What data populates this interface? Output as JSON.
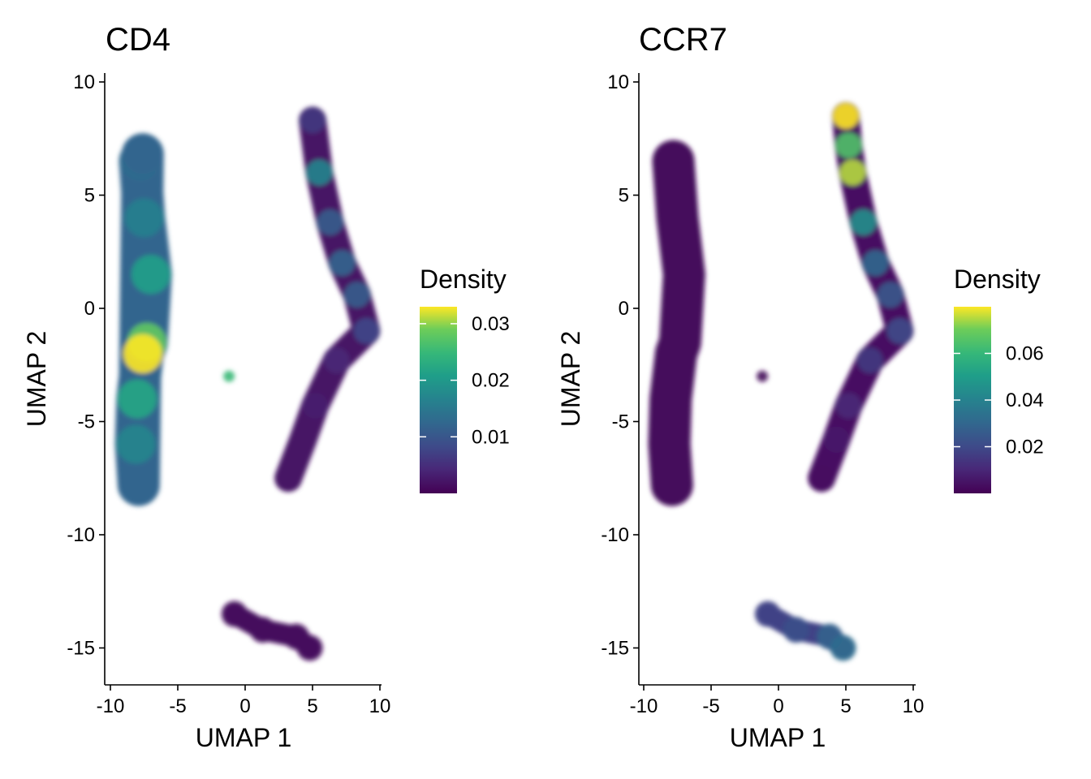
{
  "chart_data": [
    {
      "type": "scatter",
      "title": "CD4",
      "xlabel": "UMAP 1",
      "ylabel": "UMAP 2",
      "xlim": [
        -10,
        10
      ],
      "ylim": [
        -15,
        10
      ],
      "x_ticks": [
        -10,
        -5,
        0,
        5,
        10
      ],
      "y_ticks": [
        -15,
        -10,
        -5,
        0,
        5,
        10
      ],
      "x_tick_labels": [
        "-10",
        "-5",
        "0",
        "5",
        "10"
      ],
      "y_tick_labels": [
        "-15",
        "-10",
        "-5",
        "0",
        "5",
        "10"
      ],
      "grid": false,
      "color_scale": "viridis",
      "legend": {
        "title": "Density",
        "placement": "right",
        "min": 0.0,
        "max": 0.033,
        "ticks": [
          0.01,
          0.02,
          0.03
        ],
        "tick_labels": [
          "0.01",
          "0.02",
          "0.03"
        ]
      },
      "clusters": [
        {
          "x": [
            -7.8,
            -7.5,
            -7.0,
            -7.3,
            -7.6,
            -8.0,
            -8.1,
            -7.9,
            -7.6
          ],
          "y": [
            6.5,
            4.0,
            1.5,
            -1.5,
            -2.0,
            -4.0,
            -6.0,
            -7.8,
            6.8
          ],
          "density": [
            0.013,
            0.016,
            0.021,
            0.028,
            0.033,
            0.022,
            0.017,
            0.012,
            0.012
          ]
        },
        {
          "x": [
            -1.2
          ],
          "y": [
            -3.0
          ],
          "density": [
            0.025
          ]
        },
        {
          "x": [
            5.0,
            5.5,
            6.3,
            7.2,
            8.3,
            9.0,
            6.8,
            5.2,
            4.3,
            3.2
          ],
          "y": [
            8.3,
            6.0,
            3.8,
            2.0,
            0.6,
            -1.0,
            -2.3,
            -4.3,
            -5.8,
            -7.5
          ],
          "density": [
            0.006,
            0.017,
            0.011,
            0.012,
            0.011,
            0.008,
            0.004,
            0.003,
            0.002,
            0.002
          ]
        },
        {
          "x": [
            -0.8,
            1.3,
            3.8,
            4.8
          ],
          "y": [
            -13.5,
            -14.2,
            -14.5,
            -15.0
          ],
          "density": [
            0.001,
            0.001,
            0.001,
            0.001
          ]
        }
      ]
    },
    {
      "type": "scatter",
      "title": "CCR7",
      "xlabel": "UMAP 1",
      "ylabel": "UMAP 2",
      "xlim": [
        -10,
        10
      ],
      "ylim": [
        -15,
        10
      ],
      "x_ticks": [
        -10,
        -5,
        0,
        5,
        10
      ],
      "y_ticks": [
        -15,
        -10,
        -5,
        0,
        5,
        10
      ],
      "x_tick_labels": [
        "-10",
        "-5",
        "0",
        "5",
        "10"
      ],
      "y_tick_labels": [
        "-15",
        "-10",
        "-5",
        "0",
        "5",
        "10"
      ],
      "grid": false,
      "color_scale": "viridis",
      "legend": {
        "title": "Density",
        "placement": "right",
        "min": 0.0,
        "max": 0.08,
        "ticks": [
          0.02,
          0.04,
          0.06
        ],
        "tick_labels": [
          "0.02",
          "0.04",
          "0.06"
        ]
      },
      "clusters": [
        {
          "x": [
            -7.8,
            -7.5,
            -7.0,
            -7.3,
            -7.6,
            -8.0,
            -8.1,
            -7.9
          ],
          "y": [
            6.5,
            4.0,
            1.5,
            -1.5,
            -2.0,
            -4.0,
            -6.0,
            -7.8
          ],
          "density": [
            0.002,
            0.002,
            0.002,
            0.002,
            0.002,
            0.002,
            0.002,
            0.002
          ]
        },
        {
          "x": [
            -1.2
          ],
          "y": [
            -3.0
          ],
          "density": [
            0.002
          ]
        },
        {
          "x": [
            5.0,
            5.2,
            5.5,
            6.3,
            7.2,
            8.3,
            9.0,
            6.8,
            5.2,
            4.3,
            3.2
          ],
          "y": [
            8.5,
            7.2,
            6.0,
            3.8,
            2.0,
            0.6,
            -1.0,
            -2.3,
            -4.3,
            -5.8,
            -7.5
          ],
          "density": [
            0.08,
            0.065,
            0.075,
            0.045,
            0.03,
            0.025,
            0.02,
            0.015,
            0.01,
            0.006,
            0.004
          ]
        },
        {
          "x": [
            -0.8,
            1.3,
            3.8,
            4.8
          ],
          "y": [
            -13.5,
            -14.2,
            -14.5,
            -15.0
          ],
          "density": [
            0.018,
            0.022,
            0.028,
            0.032
          ]
        }
      ]
    }
  ]
}
